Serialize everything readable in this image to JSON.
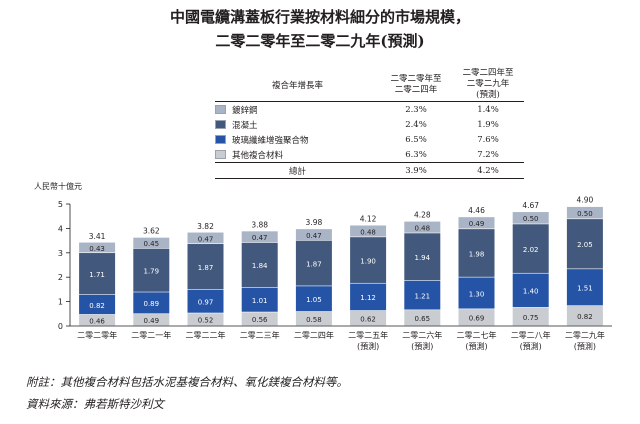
{
  "title_line1": "中國電纜溝蓋板行業按材料細分的市場規模，",
  "title_line2": "二零二零年至二零二九年(預測)",
  "cagr_table": {
    "header_label": "複合年增長率",
    "period1": [
      "二零二零年至",
      "二零二四年"
    ],
    "period2": [
      "二零二四年至",
      "二零二九年",
      "(預測)"
    ],
    "rows": [
      {
        "name": "鍍鋅鋼",
        "p1": "2.3%",
        "p2": "1.4%",
        "color": "#a9b4c6"
      },
      {
        "name": "混凝土",
        "p1": "2.4%",
        "p2": "1.9%",
        "color": "#42587c"
      },
      {
        "name": "玻璃纖維增強聚合物",
        "p1": "6.5%",
        "p2": "7.6%",
        "color": "#2553a6"
      },
      {
        "name": "其他複合材料",
        "p1": "6.3%",
        "p2": "7.2%",
        "color": "#c9ccd0"
      }
    ],
    "total": {
      "name": "總計",
      "p1": "3.9%",
      "p2": "4.2%"
    }
  },
  "chart_data": {
    "type": "bar",
    "stacked": true,
    "ylabel": "人民幣十億元",
    "ylim": [
      0,
      5
    ],
    "yticks": [
      0,
      1,
      2,
      3,
      4,
      5
    ],
    "categories": [
      [
        "二零二零年"
      ],
      [
        "二零二一年"
      ],
      [
        "二零二二年"
      ],
      [
        "二零二三年"
      ],
      [
        "二零二四年"
      ],
      [
        "二零二五年",
        "(預測)"
      ],
      [
        "二零二六年",
        "(預測)"
      ],
      [
        "二零二七年",
        "(預測)"
      ],
      [
        "二零二八年",
        "(預測)"
      ],
      [
        "二零二九年",
        "(預測)"
      ]
    ],
    "series": [
      {
        "name": "其他複合材料",
        "color": "#c9ccd0",
        "label_color": "#231f20",
        "values": [
          0.46,
          0.49,
          0.52,
          0.56,
          0.58,
          0.62,
          0.65,
          0.69,
          0.75,
          0.82
        ],
        "labels": [
          "0.46",
          "0.49",
          "0.52",
          "0.56",
          "0.58",
          "0.62",
          "0.65",
          "0.69",
          "0.75",
          "0.82"
        ]
      },
      {
        "name": "玻璃纖維增強聚合物",
        "color": "#2553a6",
        "label_color": "#ffffff",
        "values": [
          0.82,
          0.89,
          0.97,
          1.01,
          1.05,
          1.12,
          1.21,
          1.3,
          1.4,
          1.51
        ],
        "labels": [
          "0.82",
          "0.89",
          "0.97",
          "1.01",
          "1.05",
          "1.12",
          "1.21",
          "1.30",
          "1.40",
          "1.51"
        ]
      },
      {
        "name": "混凝土",
        "color": "#42587c",
        "label_color": "#ffffff",
        "values": [
          1.71,
          1.79,
          1.87,
          1.84,
          1.87,
          1.9,
          1.94,
          1.98,
          2.02,
          2.05
        ],
        "labels": [
          "1.71",
          "1.79",
          "1.87",
          "1.84",
          "1.87",
          "1.90",
          "1.94",
          "1.98",
          "2.02",
          "2.05"
        ]
      },
      {
        "name": "鍍鋅鋼",
        "color": "#a9b4c6",
        "label_color": "#231f20",
        "values": [
          0.43,
          0.45,
          0.47,
          0.47,
          0.47,
          0.48,
          0.48,
          0.49,
          0.5,
          0.5
        ],
        "labels": [
          "0.43",
          "0.45",
          "0.47",
          "0.47",
          "0.47",
          "0.48",
          "0.48",
          "0.49",
          "0.50",
          "0.50"
        ]
      }
    ],
    "totals": [
      3.41,
      3.62,
      3.82,
      3.88,
      3.98,
      4.12,
      4.28,
      4.46,
      4.67,
      4.9
    ],
    "total_labels": [
      "3.41",
      "3.62",
      "3.82",
      "3.88",
      "3.98",
      "4.12",
      "4.28",
      "4.46",
      "4.67",
      "4.90"
    ]
  },
  "footnote": "附註：其他複合材料包括水泥基複合材料、氧化鎂複合材料等。",
  "source": "資料來源：弗若斯特沙利文"
}
